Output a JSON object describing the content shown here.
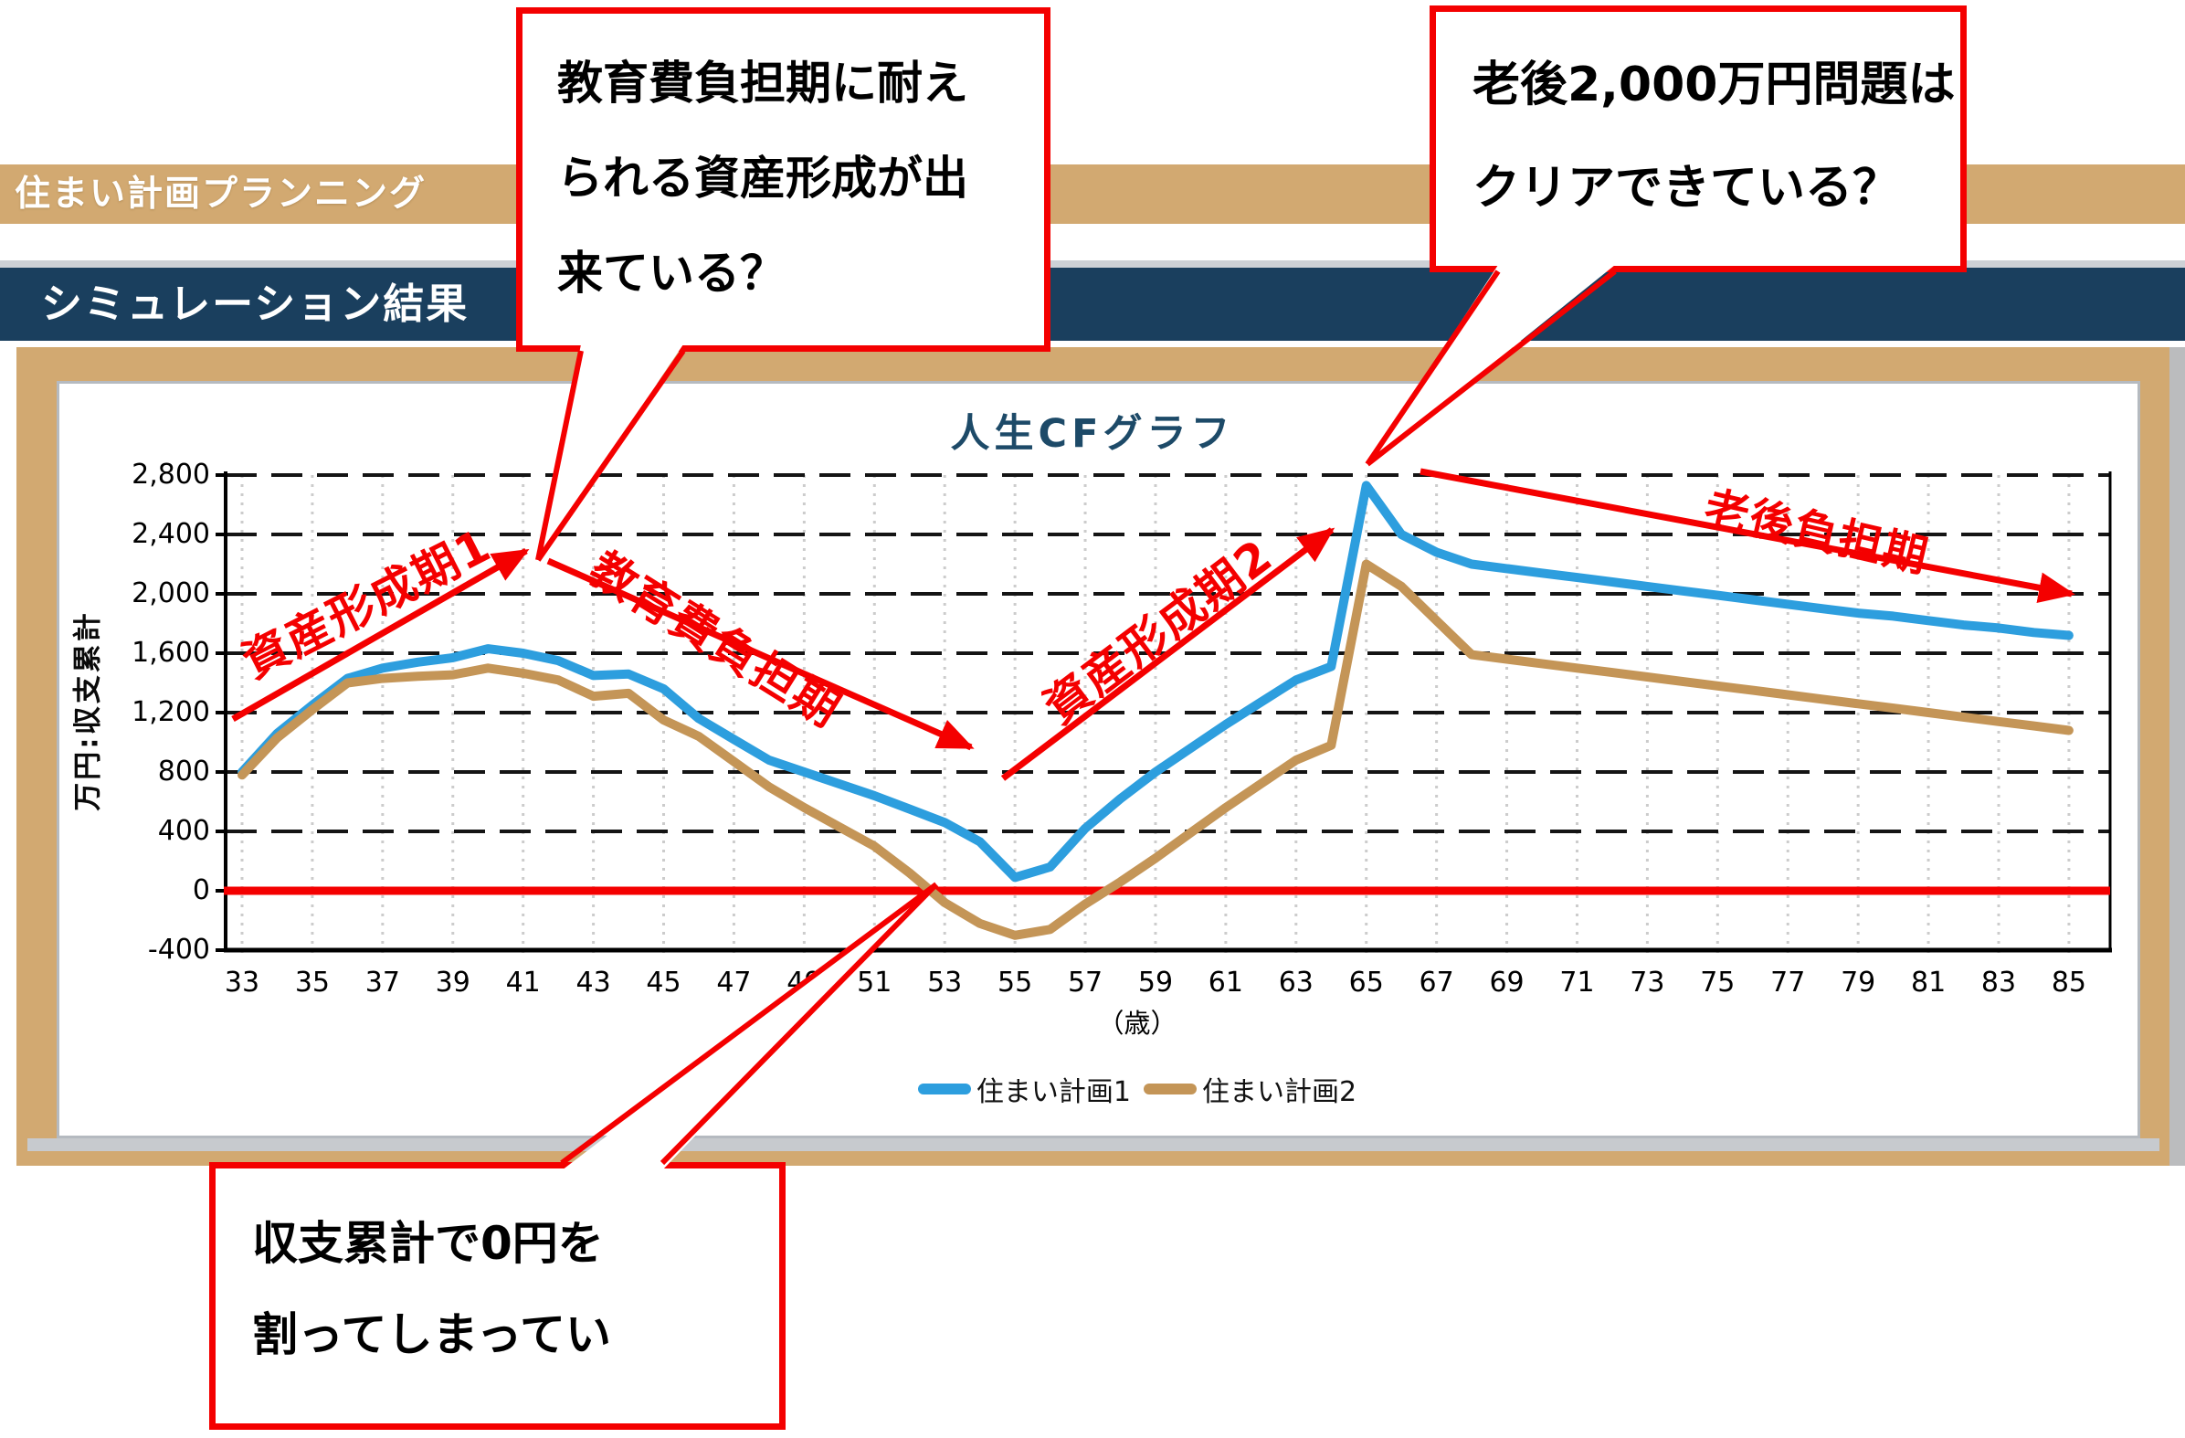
{
  "header": {
    "bar1": "住まい計画プランニング",
    "bar2": "シミュレーション結果"
  },
  "chart_data": {
    "type": "line",
    "title": "人生CFグラフ",
    "ylabel": "万円:収支累計",
    "xlabel": "（歳）",
    "x_start": 33,
    "x_end": 85,
    "x_ticks": [
      33,
      35,
      37,
      39,
      41,
      43,
      45,
      47,
      49,
      51,
      53,
      55,
      57,
      59,
      61,
      63,
      65,
      67,
      69,
      71,
      73,
      75,
      77,
      79,
      81,
      83,
      85
    ],
    "y_ticks": [
      2800,
      2400,
      2000,
      1600,
      1200,
      800,
      400,
      0,
      -400
    ],
    "ylim": [
      -400,
      2800
    ],
    "grid": "horizontal-dashed-black, vertical-dotted-gray",
    "legend_position": "bottom-center",
    "zero_line_color": "#F40000",
    "series": [
      {
        "name": "住まい計画1",
        "color": "#2D9EDE",
        "values": [
          800,
          1060,
          1250,
          1430,
          1500,
          1540,
          1570,
          1630,
          1600,
          1550,
          1450,
          1460,
          1360,
          1160,
          1020,
          880,
          800,
          720,
          640,
          550,
          460,
          330,
          90,
          160,
          420,
          620,
          800,
          960,
          1120,
          1270,
          1420,
          1510,
          2730,
          2400,
          2280,
          2200,
          2170,
          2140,
          2110,
          2080,
          2050,
          2020,
          1990,
          1960,
          1930,
          1900,
          1870,
          1850,
          1820,
          1790,
          1770,
          1740,
          1720
        ]
      },
      {
        "name": "住まい計画2",
        "color": "#C49557",
        "values": [
          780,
          1030,
          1220,
          1400,
          1430,
          1445,
          1455,
          1500,
          1465,
          1420,
          1310,
          1330,
          1150,
          1040,
          870,
          700,
          560,
          430,
          300,
          120,
          -80,
          -220,
          -300,
          -260,
          -90,
          60,
          220,
          390,
          560,
          720,
          880,
          980,
          2200,
          2050,
          1820,
          1590,
          1560,
          1530,
          1500,
          1470,
          1440,
          1410,
          1380,
          1350,
          1320,
          1290,
          1260,
          1230,
          1200,
          1170,
          1140,
          1110,
          1080
        ]
      }
    ]
  },
  "legend": {
    "items": [
      {
        "label": "住まい計画1",
        "color": "#2D9EDE"
      },
      {
        "label": "住まい計画2",
        "color": "#C49557"
      }
    ]
  },
  "annotations": {
    "callout1": {
      "lines": [
        "教育費負担期に耐え",
        "られる資産形成が出",
        "来ている？"
      ]
    },
    "callout2": {
      "lines": [
        "老後2,000万円問題は",
        "クリアできている？"
      ]
    },
    "callout3": {
      "lines": [
        "収支累計で0円を",
        "割ってしまってい"
      ]
    },
    "phase1": "資産形成期1",
    "phase2": "教育費負担期",
    "phase3": "資産形成期2",
    "phase4": "老後負担期"
  },
  "colors": {
    "band_tan": "#D2A971",
    "band_navy": "#1A3F5E",
    "title_navy": "#1D4A68",
    "annotation_red": "#F40000",
    "grid_black": "#141414",
    "grid_gray": "#CCCCCC"
  }
}
